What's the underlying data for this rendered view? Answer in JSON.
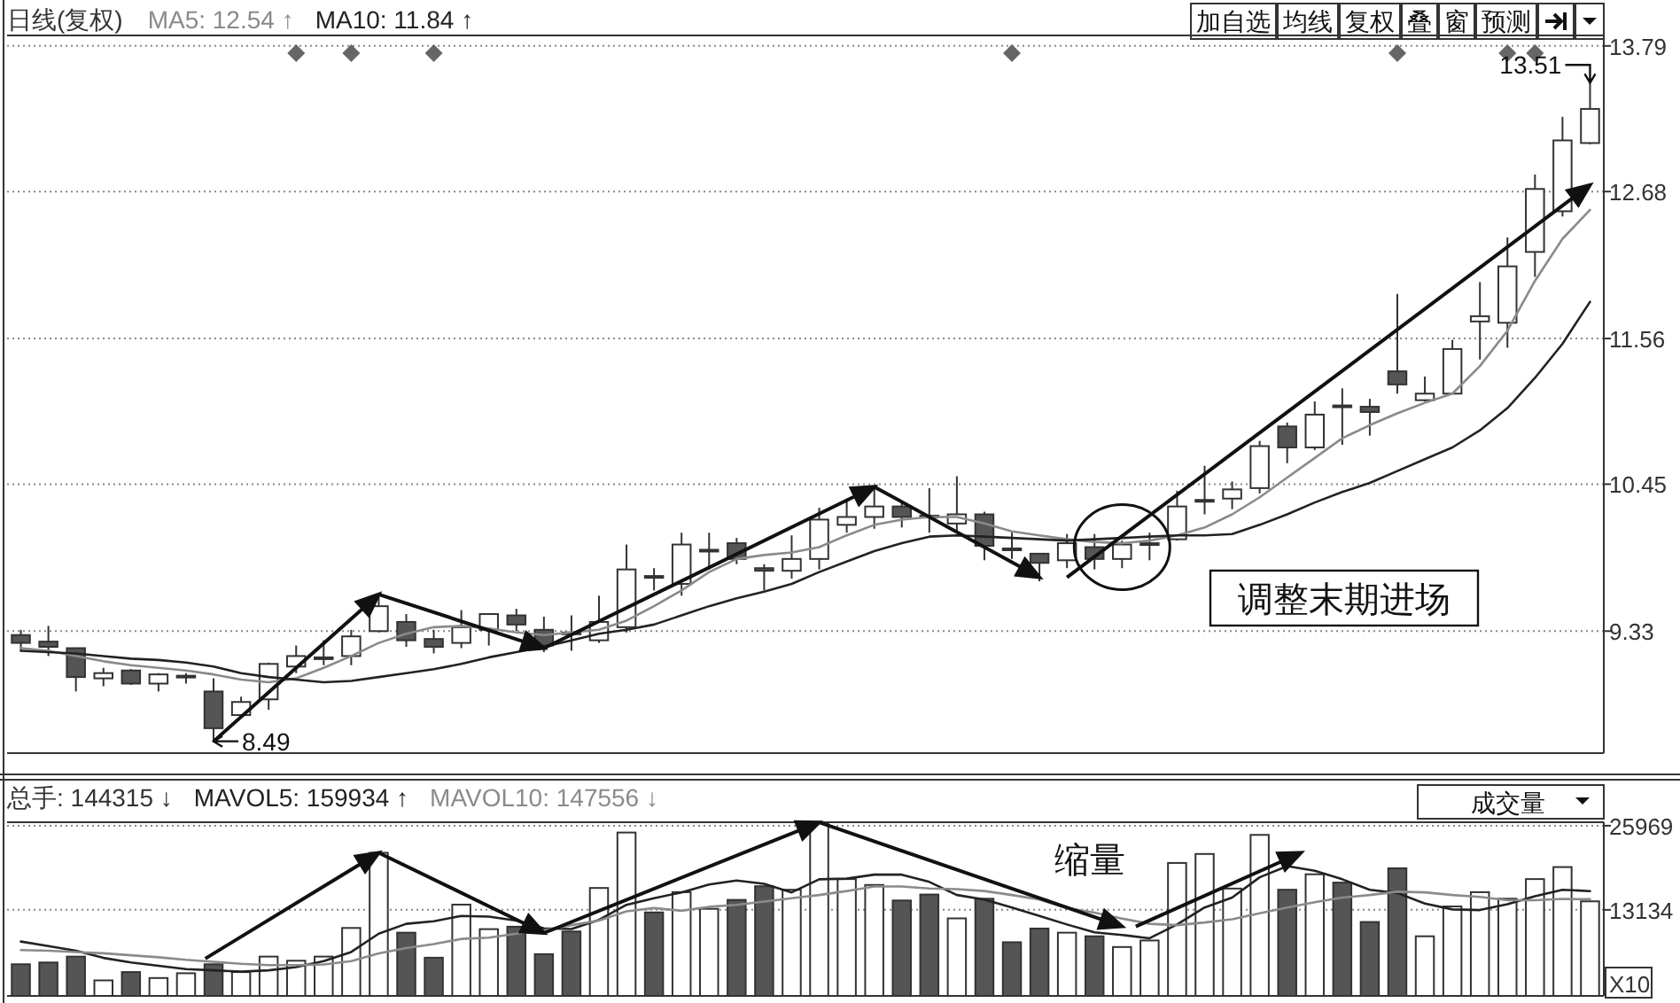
{
  "chart_data": [
    {
      "type": "candlestick",
      "title": "日线(复权)",
      "categories": [
        null,
        null,
        null,
        null,
        null,
        null,
        null,
        null,
        null,
        null,
        null,
        null,
        null,
        null,
        null,
        null,
        null,
        null,
        null,
        null,
        null,
        null,
        null,
        null,
        null,
        null,
        null,
        null,
        null,
        null,
        null,
        null,
        null,
        null,
        null,
        null,
        null,
        null,
        null,
        null,
        null,
        null,
        null,
        null,
        null,
        null,
        null,
        null,
        null,
        null,
        null,
        null,
        null,
        null,
        null,
        null,
        null,
        null
      ],
      "ohlc": [
        [
          9.3,
          9.34,
          9.18,
          9.24
        ],
        [
          9.25,
          9.37,
          9.14,
          9.21
        ],
        [
          9.2,
          9.2,
          8.87,
          8.98
        ],
        [
          8.97,
          9.05,
          8.91,
          9.01
        ],
        [
          9.03,
          9.04,
          8.92,
          8.93
        ],
        [
          8.93,
          9.01,
          8.87,
          9.0
        ],
        [
          8.98,
          9.01,
          8.93,
          8.99
        ],
        [
          8.87,
          8.97,
          8.49,
          8.59
        ],
        [
          8.69,
          8.83,
          8.67,
          8.79
        ],
        [
          8.81,
          9.09,
          8.73,
          9.08
        ],
        [
          9.06,
          9.22,
          9.01,
          9.14
        ],
        [
          9.12,
          9.26,
          9.07,
          9.13
        ],
        [
          9.14,
          9.34,
          9.07,
          9.29
        ],
        [
          9.33,
          9.61,
          9.32,
          9.52
        ],
        [
          9.4,
          9.46,
          9.21,
          9.26
        ],
        [
          9.27,
          9.34,
          9.16,
          9.21
        ],
        [
          9.24,
          9.49,
          9.2,
          9.36
        ],
        [
          9.34,
          9.46,
          9.22,
          9.46
        ],
        [
          9.45,
          9.5,
          9.33,
          9.38
        ],
        [
          9.34,
          9.44,
          9.17,
          9.22
        ],
        [
          9.31,
          9.45,
          9.18,
          9.32
        ],
        [
          9.26,
          9.6,
          9.24,
          9.4
        ],
        [
          9.36,
          9.99,
          9.32,
          9.8
        ],
        [
          9.74,
          9.81,
          9.64,
          9.75
        ],
        [
          9.69,
          10.08,
          9.6,
          9.99
        ],
        [
          9.94,
          10.08,
          9.8,
          9.95
        ],
        [
          10.0,
          10.04,
          9.84,
          9.88
        ],
        [
          9.81,
          9.84,
          9.64,
          9.79
        ],
        [
          9.79,
          10.06,
          9.73,
          9.88
        ],
        [
          9.88,
          10.27,
          9.8,
          10.18
        ],
        [
          10.14,
          10.34,
          10.08,
          10.2
        ],
        [
          10.2,
          10.42,
          10.11,
          10.28
        ],
        [
          10.28,
          10.32,
          10.12,
          10.2
        ],
        [
          10.2,
          10.42,
          10.08,
          10.21
        ],
        [
          10.15,
          10.51,
          10.08,
          10.22
        ],
        [
          10.22,
          10.24,
          9.87,
          9.98
        ],
        [
          9.95,
          10.08,
          9.88,
          9.96
        ],
        [
          9.92,
          9.92,
          9.71,
          9.85
        ],
        [
          9.87,
          10.07,
          9.81,
          10.0
        ],
        [
          9.97,
          10.07,
          9.8,
          9.88
        ],
        [
          9.88,
          10.02,
          9.81,
          9.99
        ],
        [
          9.99,
          10.08,
          9.87,
          10.0
        ],
        [
          10.03,
          10.4,
          10.02,
          10.28
        ],
        [
          10.32,
          10.59,
          10.22,
          10.33
        ],
        [
          10.34,
          10.47,
          10.26,
          10.41
        ],
        [
          10.42,
          10.78,
          10.38,
          10.74
        ],
        [
          10.89,
          10.92,
          10.61,
          10.73
        ],
        [
          10.73,
          11.08,
          10.71,
          10.98
        ],
        [
          11.04,
          11.18,
          10.75,
          11.05
        ],
        [
          11.04,
          11.1,
          10.82,
          11.0
        ],
        [
          11.31,
          11.9,
          11.14,
          11.21
        ],
        [
          11.09,
          11.27,
          11.08,
          11.14
        ],
        [
          11.14,
          11.55,
          11.14,
          11.48
        ],
        [
          11.69,
          11.99,
          11.4,
          11.73
        ],
        [
          11.68,
          12.33,
          11.49,
          12.11
        ],
        [
          12.22,
          12.81,
          12.03,
          12.7
        ],
        [
          12.53,
          13.25,
          12.49,
          13.07
        ],
        [
          13.05,
          13.51,
          13.04,
          13.31
        ]
      ],
      "series": [
        {
          "name": "MA5: 12.54 ↑",
          "type": "line",
          "color": "#8a8a8a",
          "values": [
            9.2,
            9.18,
            9.14,
            9.1,
            9.07,
            9.05,
            9.03,
            9.0,
            8.96,
            8.94,
            8.97,
            9.05,
            9.14,
            9.24,
            9.31,
            9.36,
            9.37,
            9.35,
            9.32,
            9.3,
            9.32,
            9.34,
            9.41,
            9.52,
            9.64,
            9.78,
            9.88,
            9.91,
            9.93,
            9.97,
            10.06,
            10.14,
            10.18,
            10.2,
            10.2,
            10.15,
            10.09,
            10.06,
            10.03,
            10.01,
            10.0,
            10.02,
            10.06,
            10.12,
            10.22,
            10.35,
            10.5,
            10.65,
            10.8,
            10.9,
            10.99,
            11.07,
            11.14,
            11.35,
            11.62,
            12.0,
            12.32,
            12.54
          ]
        },
        {
          "name": "MA10: 11.84 ↑",
          "type": "line",
          "color": "#222222",
          "values": [
            9.18,
            9.17,
            9.16,
            9.14,
            9.12,
            9.11,
            9.09,
            9.06,
            9.01,
            8.98,
            8.96,
            8.94,
            8.95,
            8.98,
            9.01,
            9.04,
            9.08,
            9.13,
            9.17,
            9.21,
            9.26,
            9.31,
            9.34,
            9.38,
            9.45,
            9.52,
            9.58,
            9.63,
            9.69,
            9.78,
            9.86,
            9.94,
            10.0,
            10.05,
            10.06,
            10.05,
            10.04,
            10.03,
            10.02,
            10.03,
            10.04,
            10.05,
            10.06,
            10.06,
            10.07,
            10.14,
            10.22,
            10.31,
            10.39,
            10.46,
            10.55,
            10.64,
            10.73,
            10.86,
            11.03,
            11.26,
            11.52,
            11.84
          ]
        }
      ],
      "ylim": [
        8.4,
        13.87
      ],
      "yticks": [
        9.33,
        10.45,
        11.56,
        12.68,
        13.79
      ],
      "grid": "y",
      "legend": "top left",
      "annotations": [
        "8.49",
        "13.51",
        "调整末期进场",
        "加自选",
        "均线",
        "复权",
        "叠",
        "窗",
        "预测"
      ]
    },
    {
      "type": "bar",
      "categories": [
        null,
        null,
        null,
        null,
        null,
        null,
        null,
        null,
        null,
        null,
        null,
        null,
        null,
        null,
        null,
        null,
        null,
        null,
        null,
        null,
        null,
        null,
        null,
        null,
        null,
        null,
        null,
        null,
        null,
        null,
        null,
        null,
        null,
        null,
        null,
        null,
        null,
        null,
        null,
        null,
        null,
        null,
        null,
        null,
        null,
        null,
        null,
        null,
        null,
        null,
        null,
        null,
        null,
        null,
        null,
        null,
        null,
        null
      ],
      "series": [
        {
          "name": "总手: 144315 ↓",
          "type": "bar",
          "color": "#555555",
          "colors": [
            "#555555",
            "#555555",
            "#555555",
            "#ffffff",
            "#555555",
            "#ffffff",
            "#ffffff",
            "#555555",
            "#ffffff",
            "#ffffff",
            "#ffffff",
            "#ffffff",
            "#ffffff",
            "#ffffff",
            "#555555",
            "#555555",
            "#ffffff",
            "#ffffff",
            "#555555",
            "#555555",
            "#555555",
            "#ffffff",
            "#ffffff",
            "#555555",
            "#ffffff",
            "#ffffff",
            "#555555",
            "#555555",
            "#ffffff",
            "#ffffff",
            "#ffffff",
            "#ffffff",
            "#555555",
            "#555555",
            "#ffffff",
            "#555555",
            "#555555",
            "#555555",
            "#ffffff",
            "#555555",
            "#ffffff",
            "#ffffff",
            "#ffffff",
            "#ffffff",
            "#ffffff",
            "#ffffff",
            "#555555",
            "#ffffff",
            "#555555",
            "#555555",
            "#555555",
            "#ffffff",
            "#ffffff",
            "#ffffff",
            "#ffffff",
            "#ffffff",
            "#ffffff",
            "#ffffff"
          ],
          "values": [
            4830,
            5100,
            6000,
            2370,
            3640,
            2730,
            3460,
            4830,
            3640,
            6000,
            5370,
            6000,
            10370,
            21840,
            9650,
            5830,
            13930,
            10190,
            10560,
            6370,
            9830,
            16470,
            24930,
            12740,
            15830,
            13290,
            14650,
            16740,
            16200,
            26480,
            17830,
            16930,
            14560,
            15470,
            11830,
            14830,
            8190,
            10280,
            9650,
            9100,
            7460,
            8460,
            20290,
            21660,
            16380,
            24570,
            16200,
            18560,
            17290,
            11280,
            19470,
            9100,
            13650,
            15830,
            14830,
            17830,
            19660,
            14432
          ]
        },
        {
          "name": "MAVOL5: 159934 ↑",
          "type": "line",
          "color": "#222222",
          "values": [
            8300,
            7600,
            6900,
            5800,
            5100,
            4600,
            4100,
            3900,
            3700,
            3900,
            4400,
            5300,
            6700,
            9500,
            11000,
            11400,
            12200,
            12100,
            11500,
            10300,
            10200,
            11600,
            13900,
            14900,
            15800,
            17000,
            17600,
            17100,
            15800,
            17800,
            17900,
            18500,
            18500,
            17400,
            15400,
            14700,
            13500,
            12200,
            10900,
            9700,
            9300,
            8800,
            10900,
            13500,
            15000,
            18100,
            19800,
            19100,
            17800,
            16200,
            15700,
            14100,
            13200,
            13100,
            14000,
            15200,
            16200,
            15993
          ]
        },
        {
          "name": "MAVOL10: 147556 ↓",
          "type": "line",
          "color": "#8a8a8a",
          "values": [
            7000,
            6900,
            6700,
            6500,
            6200,
            5900,
            5500,
            5200,
            4900,
            4700,
            4700,
            4800,
            5300,
            6500,
            7300,
            7900,
            8700,
            8900,
            9500,
            10000,
            10800,
            11500,
            12900,
            13400,
            13000,
            13600,
            13900,
            14400,
            14900,
            15400,
            16000,
            16700,
            16700,
            16400,
            16300,
            16000,
            15400,
            14700,
            13400,
            12700,
            11800,
            11000,
            10800,
            11200,
            11700,
            12600,
            13500,
            14300,
            15000,
            15400,
            15900,
            15800,
            15400,
            15100,
            14600,
            14600,
            14800,
            14756
          ]
        }
      ],
      "ylim": [
        0,
        26500
      ],
      "yticks": [
        13134,
        25969
      ],
      "grid": "y",
      "legend": "top left",
      "annotations": [
        "缩量",
        "成交量",
        "X10"
      ]
    }
  ]
}
